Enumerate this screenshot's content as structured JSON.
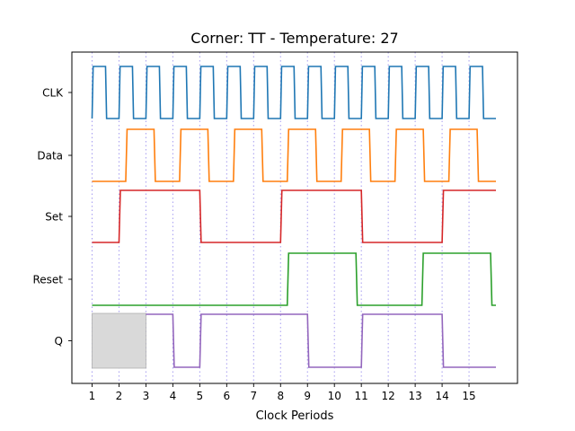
{
  "chart_data": {
    "type": "line",
    "title": "Corner: TT - Temperature: 27",
    "xlabel": "Clock Periods",
    "ylabel": "",
    "xlim": [
      0.25,
      16.8
    ],
    "x_ticks": [
      1,
      2,
      3,
      4,
      5,
      6,
      7,
      8,
      9,
      10,
      11,
      12,
      13,
      14,
      15
    ],
    "y_tick_labels": [
      "CLK",
      "Data",
      "Set",
      "Reset",
      "Q"
    ],
    "grid": "vertical dotted lines at each clock period",
    "grid_color": "#a59cf0",
    "shaded_region": {
      "x": [
        1,
        3
      ],
      "signal": "Q",
      "color": "#d9d9d9"
    },
    "series": [
      {
        "name": "CLK",
        "color": "#1f77b4",
        "low": 0,
        "high": 1,
        "points": [
          [
            1,
            0
          ],
          [
            1.04,
            1
          ],
          [
            1.5,
            1
          ],
          [
            1.54,
            0
          ],
          [
            2,
            0
          ],
          [
            2.04,
            1
          ],
          [
            2.5,
            1
          ],
          [
            2.54,
            0
          ],
          [
            3,
            0
          ],
          [
            3.04,
            1
          ],
          [
            3.5,
            1
          ],
          [
            3.54,
            0
          ],
          [
            4,
            0
          ],
          [
            4.04,
            1
          ],
          [
            4.5,
            1
          ],
          [
            4.54,
            0
          ],
          [
            5,
            0
          ],
          [
            5.04,
            1
          ],
          [
            5.5,
            1
          ],
          [
            5.54,
            0
          ],
          [
            6,
            0
          ],
          [
            6.04,
            1
          ],
          [
            6.5,
            1
          ],
          [
            6.54,
            0
          ],
          [
            7,
            0
          ],
          [
            7.04,
            1
          ],
          [
            7.5,
            1
          ],
          [
            7.54,
            0
          ],
          [
            8,
            0
          ],
          [
            8.04,
            1
          ],
          [
            8.5,
            1
          ],
          [
            8.54,
            0
          ],
          [
            9,
            0
          ],
          [
            9.04,
            1
          ],
          [
            9.5,
            1
          ],
          [
            9.54,
            0
          ],
          [
            10,
            0
          ],
          [
            10.04,
            1
          ],
          [
            10.5,
            1
          ],
          [
            10.54,
            0
          ],
          [
            11,
            0
          ],
          [
            11.04,
            1
          ],
          [
            11.5,
            1
          ],
          [
            11.54,
            0
          ],
          [
            12,
            0
          ],
          [
            12.04,
            1
          ],
          [
            12.5,
            1
          ],
          [
            12.54,
            0
          ],
          [
            13,
            0
          ],
          [
            13.04,
            1
          ],
          [
            13.5,
            1
          ],
          [
            13.54,
            0
          ],
          [
            14,
            0
          ],
          [
            14.04,
            1
          ],
          [
            14.5,
            1
          ],
          [
            14.54,
            0
          ],
          [
            15,
            0
          ],
          [
            15.04,
            1
          ],
          [
            15.5,
            1
          ],
          [
            15.54,
            0
          ],
          [
            16,
            0
          ]
        ]
      },
      {
        "name": "Data",
        "color": "#ff7f0e",
        "low": 0,
        "high": 1,
        "points": [
          [
            1,
            0
          ],
          [
            2.25,
            0
          ],
          [
            2.3,
            1
          ],
          [
            3.3,
            1
          ],
          [
            3.35,
            0
          ],
          [
            4.25,
            0
          ],
          [
            4.3,
            1
          ],
          [
            5.3,
            1
          ],
          [
            5.35,
            0
          ],
          [
            6.25,
            0
          ],
          [
            6.3,
            1
          ],
          [
            7.3,
            1
          ],
          [
            7.35,
            0
          ],
          [
            8.25,
            0
          ],
          [
            8.3,
            1
          ],
          [
            9.3,
            1
          ],
          [
            9.35,
            0
          ],
          [
            10.25,
            0
          ],
          [
            10.3,
            1
          ],
          [
            11.3,
            1
          ],
          [
            11.35,
            0
          ],
          [
            12.25,
            0
          ],
          [
            12.3,
            1
          ],
          [
            13.3,
            1
          ],
          [
            13.35,
            0
          ],
          [
            14.25,
            0
          ],
          [
            14.3,
            1
          ],
          [
            15.3,
            1
          ],
          [
            15.35,
            0
          ],
          [
            16,
            0
          ]
        ]
      },
      {
        "name": "Set",
        "color": "#d62728",
        "low": 0,
        "high": 1,
        "points": [
          [
            1,
            0
          ],
          [
            2,
            0
          ],
          [
            2.05,
            1
          ],
          [
            5,
            1
          ],
          [
            5.05,
            0
          ],
          [
            8,
            0
          ],
          [
            8.05,
            1
          ],
          [
            11,
            1
          ],
          [
            11.05,
            0
          ],
          [
            14,
            0
          ],
          [
            14.05,
            1
          ],
          [
            16,
            1
          ]
        ]
      },
      {
        "name": "Reset",
        "color": "#2ca02c",
        "low": 0,
        "high": 1,
        "points": [
          [
            1,
            0
          ],
          [
            8.25,
            0
          ],
          [
            8.3,
            1
          ],
          [
            10.8,
            1
          ],
          [
            10.85,
            0
          ],
          [
            13.25,
            0
          ],
          [
            13.3,
            1
          ],
          [
            15.8,
            1
          ],
          [
            15.85,
            0
          ],
          [
            16,
            0
          ]
        ]
      },
      {
        "name": "Q",
        "color": "#9467bd",
        "low": 0,
        "high": 1,
        "points": [
          [
            3,
            1
          ],
          [
            4,
            1
          ],
          [
            4.05,
            0
          ],
          [
            5,
            0
          ],
          [
            5.05,
            1
          ],
          [
            9,
            1
          ],
          [
            9.05,
            0
          ],
          [
            11,
            0
          ],
          [
            11.05,
            1
          ],
          [
            14,
            1
          ],
          [
            14.05,
            0
          ],
          [
            16,
            0
          ]
        ]
      }
    ]
  }
}
